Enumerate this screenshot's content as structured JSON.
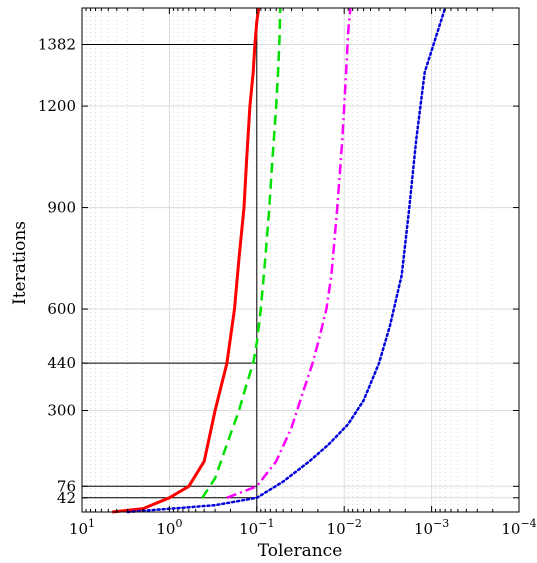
{
  "chart_data": {
    "type": "line",
    "xlabel": "Tolerance",
    "ylabel": "Iterations",
    "x_scale": "log",
    "x_reversed": true,
    "xlim": [
      10,
      0.0001
    ],
    "ylim": [
      0,
      1490
    ],
    "x_ticks": [
      {
        "value": 10,
        "base": "10",
        "exp": "1"
      },
      {
        "value": 1,
        "base": "10",
        "exp": "0"
      },
      {
        "value": 0.1,
        "base": "10",
        "exp": "−1"
      },
      {
        "value": 0.01,
        "base": "10",
        "exp": "−2"
      },
      {
        "value": 0.001,
        "base": "10",
        "exp": "−3"
      },
      {
        "value": 0.0001,
        "base": "10",
        "exp": "−4"
      }
    ],
    "y_ticks": [
      42,
      76,
      300,
      440,
      600,
      900,
      1200,
      1382
    ],
    "y_tick_labels": [
      "42",
      "76",
      "300",
      "440",
      "600",
      "900",
      "1200",
      "1382"
    ],
    "grid": true,
    "reference_lines": {
      "vertical_x": 0.1,
      "horizontal_y": [
        42,
        76,
        440,
        1382
      ]
    },
    "series": [
      {
        "color": "#ff0000",
        "style": "solid",
        "x": [
          4.5,
          2,
          1,
          0.6,
          0.4,
          0.3,
          0.22,
          0.18,
          0.16,
          0.14,
          0.13,
          0.12,
          0.11,
          0.105,
          0.1,
          0.095
        ],
        "y": [
          0,
          10,
          42,
          76,
          150,
          300,
          440,
          600,
          750,
          900,
          1050,
          1200,
          1300,
          1382,
          1450,
          1490
        ]
      },
      {
        "color": "#00e000",
        "style": "dashed",
        "x": [
          0.42,
          0.3,
          0.22,
          0.16,
          0.13,
          0.11,
          0.1,
          0.09,
          0.08,
          0.072,
          0.066,
          0.06,
          0.057,
          0.055,
          0.054
        ],
        "y": [
          42,
          100,
          200,
          300,
          380,
          440,
          500,
          600,
          750,
          900,
          1050,
          1200,
          1300,
          1400,
          1490
        ]
      },
      {
        "color": "#ff00ff",
        "style": "dashdot",
        "x": [
          0.22,
          0.1,
          0.06,
          0.04,
          0.03,
          0.023,
          0.019,
          0.016,
          0.014,
          0.012,
          0.0105,
          0.0095,
          0.009,
          0.0085
        ],
        "y": [
          42,
          76,
          150,
          250,
          350,
          440,
          520,
          600,
          700,
          900,
          1100,
          1300,
          1420,
          1490
        ]
      },
      {
        "color": "#0000dd",
        "style": "dotted",
        "x": [
          3,
          0.3,
          0.1,
          0.05,
          0.025,
          0.015,
          0.009,
          0.006,
          0.004,
          0.003,
          0.0022,
          0.0018,
          0.0015,
          0.0012,
          0.0007
        ],
        "y": [
          0,
          20,
          42,
          90,
          150,
          200,
          260,
          330,
          440,
          550,
          700,
          900,
          1100,
          1300,
          1490
        ]
      }
    ]
  }
}
